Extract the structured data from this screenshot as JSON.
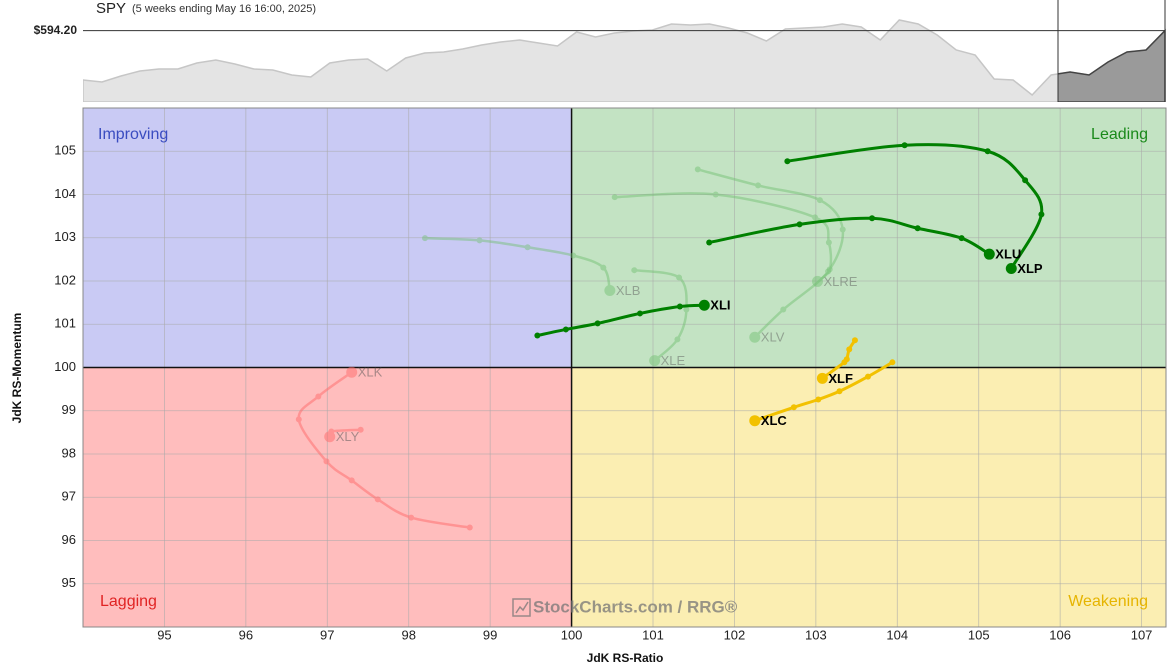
{
  "chart_data": [
    {
      "type": "area",
      "title": "SPY",
      "subtitle": "(5 weeks ending May 16 16:00, 2025)",
      "values": [
        515.2,
        512,
        521.6,
        529.6,
        532.8,
        532.8,
        542.4,
        547.2,
        540.8,
        532.8,
        531.2,
        523.2,
        520,
        542.4,
        547.2,
        548.8,
        529.6,
        550.4,
        558.4,
        560,
        564.8,
        571.2,
        576,
        579.2,
        574.4,
        569.6,
        592,
        584,
        590.4,
        593.6,
        595.2,
        604.8,
        603.2,
        604.8,
        598.4,
        590.4,
        577.6,
        596.8,
        598.4,
        600,
        604.8,
        600,
        579.2,
        611.2,
        604.8,
        587.2,
        563.2,
        555.2,
        516.8,
        515.2,
        491.2,
        523.2,
        528,
        523.2,
        544,
        560,
        563.2,
        594.2
      ],
      "ylim": [
        480,
        640
      ],
      "yticks": [
        {
          "value": 594.2,
          "label": "$594.20"
        }
      ],
      "color": "#e4e4e4",
      "line_color": "#c6c6c6",
      "highlight_color": "#9a9a9a",
      "highlight_line_color": "#444444"
    },
    {
      "type": "rrg",
      "xlabel": "JdK RS-Ratio",
      "ylabel": "JdK RS-Momentum",
      "xlim": [
        94,
        107.3
      ],
      "ylim": [
        94,
        106
      ],
      "xticks": [
        95,
        96,
        97,
        98,
        99,
        100,
        101,
        102,
        103,
        104,
        105,
        106,
        107
      ],
      "yticks": [
        95,
        96,
        97,
        98,
        99,
        100,
        101,
        102,
        103,
        104,
        105
      ],
      "grid": true,
      "center": [
        100,
        100
      ],
      "quadrants": [
        {
          "name": "Improving",
          "color": "#3a4cc0",
          "fill": "#c9caf4"
        },
        {
          "name": "Leading",
          "color": "#1a8a1a",
          "fill": "#c3e3c3"
        },
        {
          "name": "Lagging",
          "color": "#e02424",
          "fill": "#ffbdbd"
        },
        {
          "name": "Weakening",
          "color": "#e6b400",
          "fill": "#fbeeb2"
        }
      ],
      "watermark": "StockCharts.com / RRG®",
      "series": [
        {
          "name": "XLB",
          "color": "#6fbf6f",
          "opacity": 0.45,
          "x": [
            98.2,
            98.87,
            99.46,
            100.02,
            100.39,
            100.47
          ],
          "values": [
            102.99,
            102.94,
            102.78,
            102.59,
            102.31,
            101.78
          ]
        },
        {
          "name": "XLRE",
          "color": "#6fbf6f",
          "opacity": 0.45,
          "x": [
            100.53,
            101.77,
            102.99,
            103.16,
            103.17,
            103.02
          ],
          "values": [
            103.94,
            104.0,
            103.47,
            102.89,
            102.27,
            101.99
          ]
        },
        {
          "name": "XLV",
          "color": "#6fbf6f",
          "opacity": 0.45,
          "x": [
            101.55,
            102.29,
            103.05,
            103.33,
            103.15,
            102.6,
            102.25
          ],
          "values": [
            104.58,
            104.21,
            103.87,
            103.19,
            102.22,
            101.34,
            100.7
          ]
        },
        {
          "name": "XLE",
          "color": "#6fbf6f",
          "opacity": 0.45,
          "x": [
            100.77,
            101.32,
            101.41,
            101.3,
            101.02
          ],
          "values": [
            102.25,
            102.08,
            101.34,
            100.65,
            100.16
          ]
        },
        {
          "name": "XLK",
          "color": "#ff6b6b",
          "opacity": 0.5,
          "x": [
            98.75,
            98.03,
            97.62,
            97.3,
            96.99,
            96.65,
            96.89,
            97.3
          ],
          "values": [
            96.3,
            96.53,
            96.95,
            97.39,
            97.83,
            98.8,
            99.33,
            99.89
          ]
        },
        {
          "name": "XLY",
          "color": "#ff6b6b",
          "opacity": 0.5,
          "x": [
            97.41,
            97.05,
            97.03
          ],
          "values": [
            98.56,
            98.52,
            98.4
          ]
        },
        {
          "name": "XLP",
          "color": "#008000",
          "opacity": 1,
          "x": [
            102.65,
            104.09,
            105.11,
            105.57,
            105.77,
            105.4
          ],
          "values": [
            104.77,
            105.14,
            105.0,
            104.33,
            103.54,
            102.29
          ]
        },
        {
          "name": "XLU",
          "color": "#008000",
          "opacity": 1,
          "x": [
            101.69,
            102.8,
            103.69,
            104.25,
            104.79,
            105.13
          ],
          "values": [
            102.89,
            103.31,
            103.45,
            103.22,
            102.99,
            102.62
          ]
        },
        {
          "name": "XLI",
          "color": "#008000",
          "opacity": 1,
          "x": [
            99.58,
            99.93,
            100.32,
            100.84,
            101.33,
            101.63
          ],
          "values": [
            100.74,
            100.88,
            101.02,
            101.25,
            101.41,
            101.44
          ]
        },
        {
          "name": "XLF",
          "color": "#f2c100",
          "opacity": 1,
          "x": [
            103.48,
            103.41,
            103.38,
            103.35,
            103.08
          ],
          "values": [
            100.63,
            100.42,
            100.19,
            100.12,
            99.75
          ]
        },
        {
          "name": "XLC",
          "color": "#f2c100",
          "opacity": 1,
          "x": [
            103.94,
            103.64,
            103.29,
            103.03,
            102.73,
            102.25
          ],
          "values": [
            100.12,
            99.79,
            99.45,
            99.26,
            99.08,
            98.77
          ]
        }
      ]
    }
  ]
}
